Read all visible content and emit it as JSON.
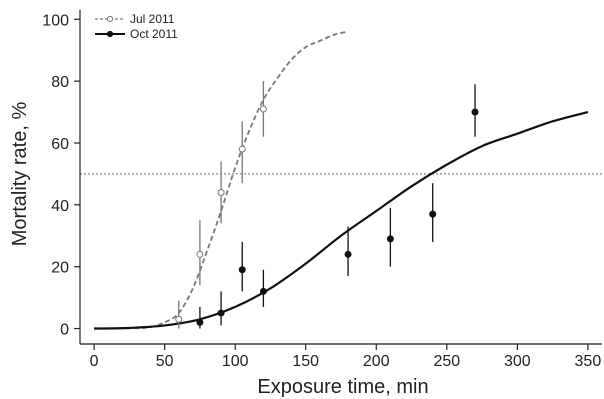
{
  "chart_data": {
    "type": "scatter",
    "xlabel": "Exposure time, min",
    "ylabel": "Mortality rate, %",
    "xlim": [
      -10,
      360
    ],
    "ylim": [
      -5,
      103
    ],
    "x_ticks": [
      0,
      50,
      100,
      150,
      200,
      250,
      300,
      350
    ],
    "y_ticks": [
      0,
      20,
      40,
      60,
      80,
      100
    ],
    "x_tick_labels": [
      "0",
      "50",
      "100",
      "150",
      "200",
      "250",
      "300",
      "350"
    ],
    "y_tick_labels": [
      "0",
      "20",
      "40",
      "60",
      "80",
      "100"
    ],
    "reference_line_y": 50,
    "legend_position": "top-left",
    "colors": {
      "jul": "#777777",
      "oct": "#111111",
      "reference": "#666666"
    },
    "series": [
      {
        "name": "Jul 2011",
        "marker": "open-circle",
        "line": "dashed",
        "points": [
          {
            "x": 60,
            "y": 3,
            "lo": 0,
            "hi": 9
          },
          {
            "x": 75,
            "y": 24,
            "lo": 14,
            "hi": 35
          },
          {
            "x": 90,
            "y": 44,
            "lo": 34,
            "hi": 54
          },
          {
            "x": 105,
            "y": 58,
            "lo": 47,
            "hi": 67
          },
          {
            "x": 120,
            "y": 71,
            "lo": 62,
            "hi": 80
          }
        ],
        "curve": [
          [
            0,
            0
          ],
          [
            30,
            0.1
          ],
          [
            40,
            0.5
          ],
          [
            50,
            2
          ],
          [
            60,
            5
          ],
          [
            70,
            13
          ],
          [
            80,
            25
          ],
          [
            90,
            38
          ],
          [
            100,
            52
          ],
          [
            110,
            64
          ],
          [
            120,
            74
          ],
          [
            130,
            81
          ],
          [
            140,
            87
          ],
          [
            150,
            91
          ],
          [
            160,
            93
          ],
          [
            170,
            95
          ],
          [
            180,
            96
          ]
        ]
      },
      {
        "name": "Oct 2011",
        "marker": "filled-circle",
        "line": "solid",
        "points": [
          {
            "x": 75,
            "y": 2,
            "lo": 0,
            "hi": 7
          },
          {
            "x": 90,
            "y": 5,
            "lo": 1,
            "hi": 12
          },
          {
            "x": 105,
            "y": 19,
            "lo": 12,
            "hi": 28
          },
          {
            "x": 120,
            "y": 12,
            "lo": 7,
            "hi": 19
          },
          {
            "x": 180,
            "y": 24,
            "lo": 17,
            "hi": 33
          },
          {
            "x": 210,
            "y": 29,
            "lo": 20,
            "hi": 39
          },
          {
            "x": 240,
            "y": 37,
            "lo": 28,
            "hi": 47
          },
          {
            "x": 270,
            "y": 70,
            "lo": 62,
            "hi": 79
          }
        ],
        "curve": [
          [
            0,
            0
          ],
          [
            25,
            0.2
          ],
          [
            50,
            1
          ],
          [
            75,
            3
          ],
          [
            100,
            7
          ],
          [
            125,
            13
          ],
          [
            150,
            21
          ],
          [
            175,
            30
          ],
          [
            200,
            38
          ],
          [
            225,
            46
          ],
          [
            250,
            53
          ],
          [
            275,
            59
          ],
          [
            300,
            63
          ],
          [
            325,
            67
          ],
          [
            350,
            70
          ]
        ]
      }
    ]
  }
}
